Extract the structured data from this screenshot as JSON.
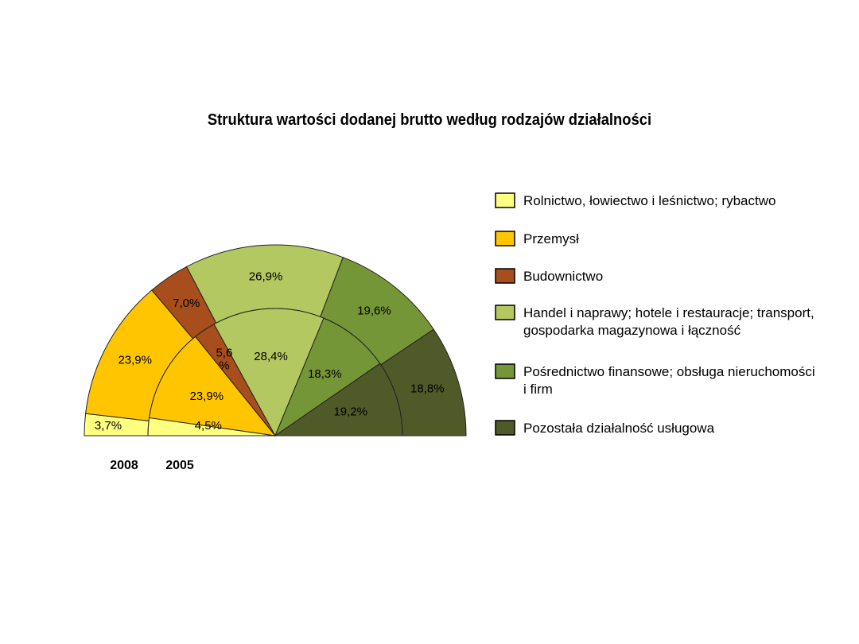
{
  "chart_data": {
    "type": "pie",
    "variant": "concentric-semicircle",
    "title": "Struktura wartości dodanej brutto według rodzajów działalności",
    "categories": [
      "Rolnictwo, łowiectwo i leśnictwo; rybactwo",
      "Przemysł",
      "Budownictwo",
      "Handel i naprawy; hotele i restauracje; transport, gospodarka magazynowa i łączność",
      "Pośrednictwo finansowe; obsługa nieruchomości i firm",
      "Pozostała działalność usługowa"
    ],
    "colors": [
      "#ffff80",
      "#ffc600",
      "#a84e1c",
      "#b3c860",
      "#759637",
      "#505a29"
    ],
    "series": [
      {
        "name": "2008",
        "ring": "outer",
        "values": [
          3.7,
          23.9,
          7.0,
          26.9,
          19.6,
          18.8
        ],
        "labels": [
          "3,7%",
          "23,9%",
          "7,0%",
          "26,9%",
          "19,6%",
          "18,8%"
        ]
      },
      {
        "name": "2005",
        "ring": "inner",
        "values": [
          4.5,
          23.9,
          5.6,
          28.4,
          18.3,
          19.2
        ],
        "labels": [
          "4,5%",
          "23,9%",
          "5,6\n%",
          "28,4%",
          "18,3%",
          "19,2%"
        ]
      }
    ],
    "legend": {
      "position": "right",
      "entries": [
        [
          "Rolnictwo, łowiectwo i leśnictwo; rybactwo"
        ],
        [
          "Przemysł"
        ],
        [
          "Budownictwo"
        ],
        [
          "Handel i naprawy; hotele i restauracje; transport,",
          "gospodarka magazynowa i łączność"
        ],
        [
          "Pośrednictwo finansowe; obsługa nieruchomości",
          "i firm"
        ],
        [
          "Pozostała działalność usługowa"
        ]
      ]
    }
  }
}
